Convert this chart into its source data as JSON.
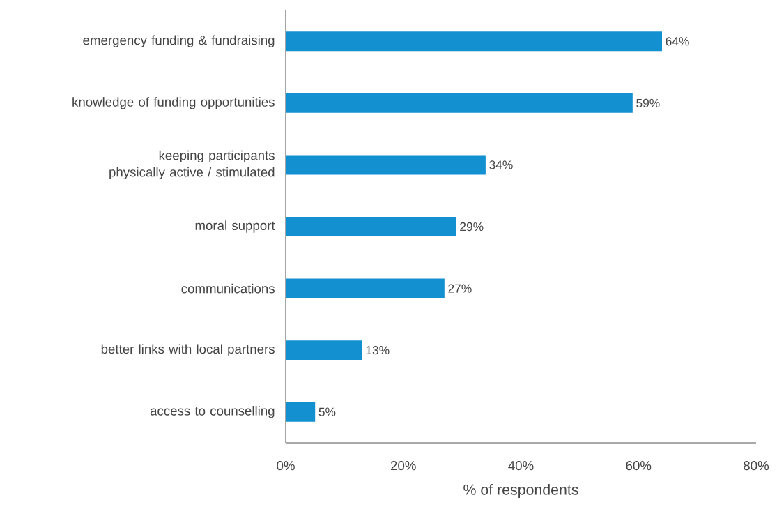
{
  "chart_data": {
    "type": "bar",
    "orientation": "horizontal",
    "xlabel": "% of respondents",
    "categories": [
      "emergency funding & fundraising",
      "knowledge of funding opportunities",
      "keeping participants physically active / stimulated",
      "moral support",
      "communications",
      "better links with local partners",
      "access to counselling"
    ],
    "values": [
      64,
      59,
      34,
      29,
      27,
      13,
      5
    ],
    "value_labels": [
      "64%",
      "59%",
      "34%",
      "29%",
      "27%",
      "13%",
      "5%"
    ],
    "color": "#1390d0",
    "xlim": [
      0,
      80
    ],
    "xticks": [
      {
        "value": 0,
        "label": "0%"
      },
      {
        "value": 20,
        "label": "20%"
      },
      {
        "value": 40,
        "label": "40%"
      },
      {
        "value": 60,
        "label": "60%"
      },
      {
        "value": 80,
        "label": "80%"
      }
    ],
    "grid": false
  }
}
